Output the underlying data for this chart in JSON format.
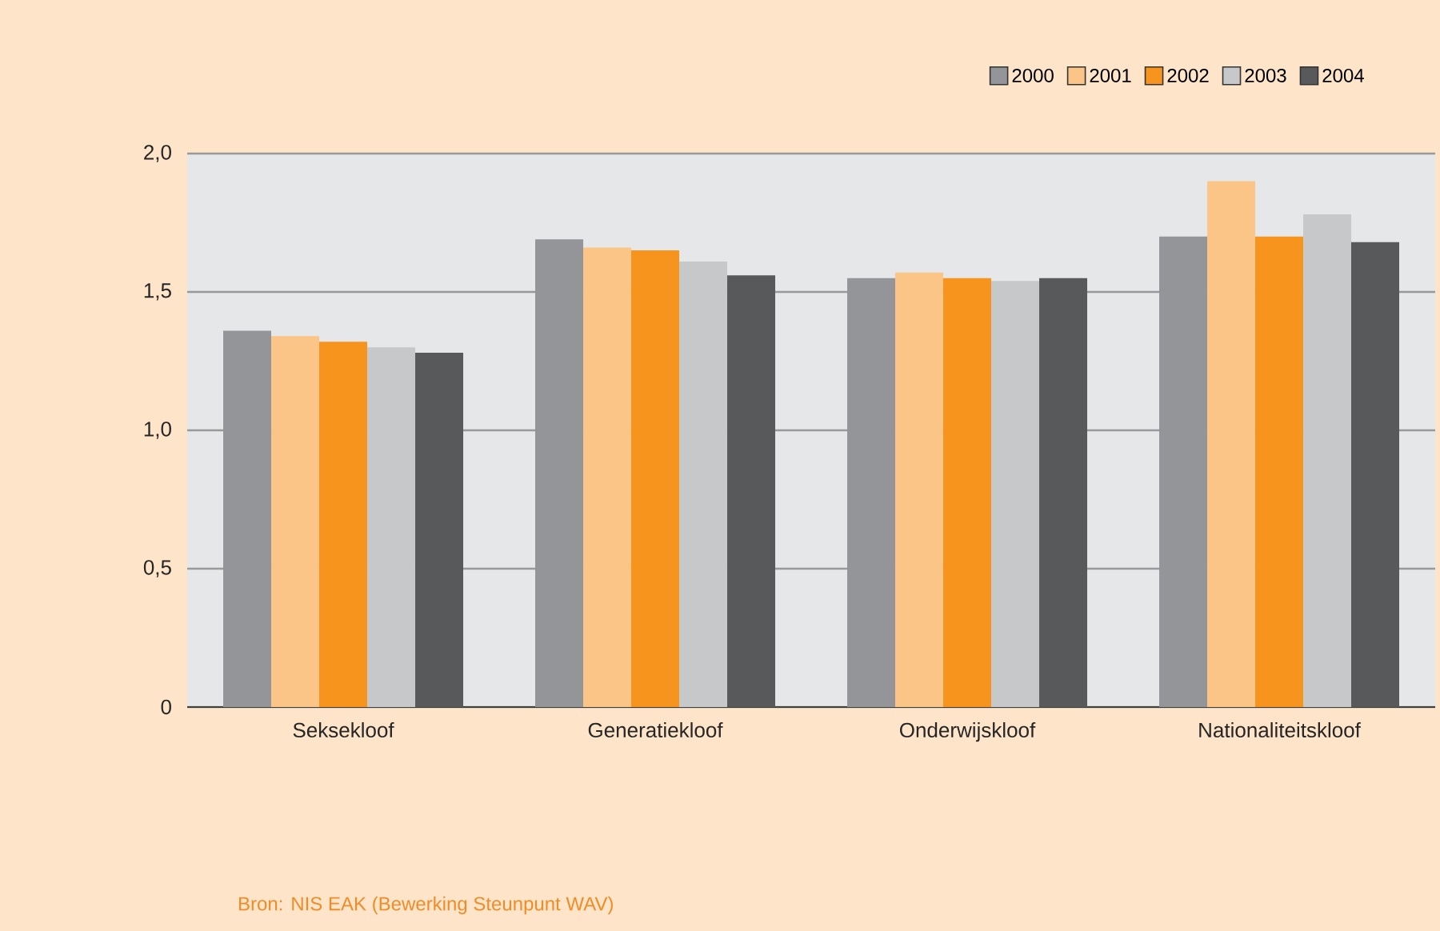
{
  "chart_data": {
    "type": "bar",
    "categories": [
      "Seksekloof",
      "Generatiekloof",
      "Onderwijskloof",
      "Nationaliteitskloof"
    ],
    "series": [
      {
        "name": "2000",
        "color": "#939598",
        "values": [
          1.36,
          1.69,
          1.55,
          1.7
        ]
      },
      {
        "name": "2001",
        "color": "#fbc588",
        "values": [
          1.34,
          1.66,
          1.57,
          1.9
        ]
      },
      {
        "name": "2002",
        "color": "#f7941e",
        "values": [
          1.32,
          1.65,
          1.55,
          1.7
        ]
      },
      {
        "name": "2003",
        "color": "#c7c8ca",
        "values": [
          1.3,
          1.61,
          1.54,
          1.78
        ]
      },
      {
        "name": "2004",
        "color": "#58595b",
        "values": [
          1.28,
          1.56,
          1.55,
          1.68
        ]
      }
    ],
    "ylim": [
      0,
      2.0
    ],
    "yticks": [
      0,
      {
        "value": 0.5,
        "label": "0,5"
      },
      {
        "value": 1.0,
        "label": "1,0"
      },
      {
        "value": 1.5,
        "label": "1,5"
      },
      {
        "value": 2.0,
        "label": "2,0"
      }
    ],
    "grid": "y",
    "legend": "top right",
    "annotations": [
      "Bron: NIS EAK (Bewerking Steunpunt WAV)"
    ]
  }
}
